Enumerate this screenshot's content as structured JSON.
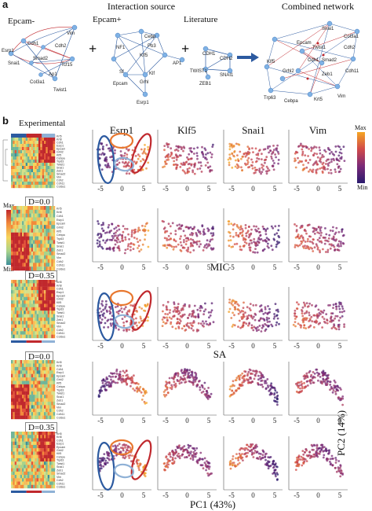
{
  "panel_a": {
    "label": "a",
    "source_title": "Interaction source",
    "combined_title": "Combined network",
    "plus": "+",
    "groups": [
      {
        "title": "Epcam-",
        "nodes": [
          "Vim",
          "Esrp1",
          "Cdh1",
          "Snai1",
          "Smad2",
          "Cdh2",
          "Tcf15",
          "Ap1",
          "Col3a1",
          "Twist1"
        ]
      },
      {
        "title": "Epcam+",
        "nodes": [
          "Esrp1",
          "Klf5",
          "Cebp",
          "NF1",
          "Pb3",
          "Ap1",
          "Grhl",
          "Klf",
          "Epcam"
        ]
      },
      {
        "title": "Literature",
        "nodes": [
          "CDH1",
          "CDH2",
          "TWIST1",
          "SNAI1",
          "ZEB1"
        ]
      }
    ],
    "combined_nodes": [
      "Snai1",
      "Col3a1",
      "Cdh2",
      "Cdh11",
      "Epcam",
      "Twist1",
      "Cdh1",
      "Smad2",
      "Zeb1",
      "Klf5",
      "Grhl2",
      "Trp63",
      "Cebpa",
      "Krt5",
      "Vim"
    ]
  },
  "panel_b": {
    "label": "b",
    "columns": [
      "Esrp1",
      "Klf5",
      "Snai1",
      "Vim"
    ],
    "row_titles": [
      "Experimental",
      "MIC",
      "SA"
    ],
    "heatmap_labels": [
      "Experimental",
      "D=0.0",
      "D=0.35",
      "D=0.0",
      "D=0.35"
    ],
    "colorbar_right": {
      "max": "Max",
      "min": "Min"
    },
    "colorbar_left": {
      "max": "Max",
      "min": "Min"
    },
    "xlabel": "PC1 (43%)",
    "ylabel": "PC2 (14%)",
    "xticks": [
      "-5",
      "0",
      "5"
    ],
    "genes": [
      "Krt5",
      "Krt8",
      "Cdh1",
      "Esrp1",
      "Epcam",
      "Grhl2",
      "Klf5",
      "Cebpa",
      "Trp63",
      "Twist1",
      "Snai1",
      "Zeb1",
      "Smad2",
      "Vim",
      "Cdh2",
      "Cdh11",
      "Col3a1"
    ]
  },
  "colors": {
    "max": "#f5a623",
    "min": "#2a1b6e",
    "ellipse_blue": "#2c5aa0",
    "ellipse_orange": "#e8772e",
    "ellipse_red": "#c0282d",
    "ellipse_lightblue": "#8fb1d6"
  }
}
